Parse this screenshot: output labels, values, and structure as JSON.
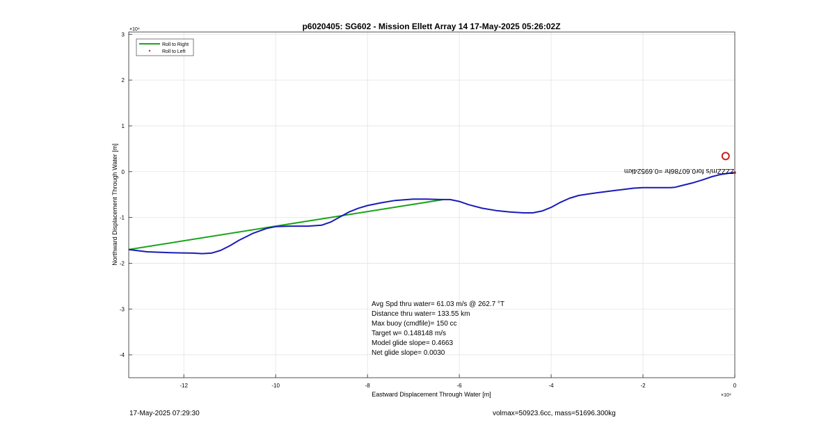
{
  "chart_data": {
    "type": "line",
    "title": "p6020405: SG602 - Mission Ellett Array 14 17-May-2025 05:26:02Z",
    "xlabel": "Eastward Displacement Through Water [m]",
    "ylabel": "Northward Displacement Through Water [m]",
    "x_exponent_label": "×10⁴",
    "y_exponent_label": "×10⁴",
    "xlim": [
      -13.2,
      0
    ],
    "ylim": [
      -4.5,
      3.05
    ],
    "x_ticks": [
      -12,
      -10,
      -8,
      -6,
      -4,
      -2,
      0
    ],
    "y_ticks": [
      -4,
      -3,
      -2,
      -1,
      0,
      1,
      2,
      3
    ],
    "grid": true,
    "legend_position": "top-left",
    "series": [
      {
        "name": "Roll to Right",
        "color": "#1aa31a",
        "x": [
          -13.2,
          -6.35
        ],
        "y": [
          -1.7,
          -0.61
        ]
      },
      {
        "name": "Roll to Left",
        "color": "#e02020",
        "marker": "dot"
      },
      {
        "name": "",
        "color": "#1a1ab8",
        "x": [
          -13.2,
          -12.8,
          -12.3,
          -11.8,
          -11.6,
          -11.4,
          -11.2,
          -11.0,
          -10.8,
          -10.5,
          -10.2,
          -10.0,
          -9.7,
          -9.3,
          -9.0,
          -8.8,
          -8.6,
          -8.4,
          -8.2,
          -8.0,
          -7.7,
          -7.4,
          -7.0,
          -6.7,
          -6.4,
          -6.2,
          -6.0,
          -5.8,
          -5.5,
          -5.2,
          -4.9,
          -4.6,
          -4.4,
          -4.2,
          -4.0,
          -3.8,
          -3.6,
          -3.4,
          -3.2,
          -3.0,
          -2.6,
          -2.2,
          -2.0,
          -1.7,
          -1.4,
          -1.3,
          -1.1,
          -0.9,
          -0.7,
          -0.5,
          -0.3,
          -0.1,
          0.0
        ],
        "y": [
          -1.7,
          -1.75,
          -1.77,
          -1.78,
          -1.79,
          -1.78,
          -1.72,
          -1.62,
          -1.5,
          -1.35,
          -1.24,
          -1.2,
          -1.19,
          -1.19,
          -1.17,
          -1.1,
          -0.99,
          -0.88,
          -0.8,
          -0.74,
          -0.68,
          -0.63,
          -0.6,
          -0.6,
          -0.61,
          -0.61,
          -0.65,
          -0.72,
          -0.8,
          -0.85,
          -0.88,
          -0.9,
          -0.9,
          -0.86,
          -0.78,
          -0.67,
          -0.58,
          -0.52,
          -0.49,
          -0.46,
          -0.41,
          -0.36,
          -0.35,
          -0.35,
          -0.35,
          -0.34,
          -0.29,
          -0.24,
          -0.18,
          -0.11,
          -0.06,
          -0.03,
          -0.02
        ]
      }
    ],
    "markers": [
      {
        "name": "current position circle",
        "x": -0.2,
        "y": 0.34,
        "color": "#c81e1e"
      }
    ],
    "annotation_mirrored": "ZZZZm/s for0.60786hr =0.69524km",
    "stats_lines": [
      "Avg Spd thru water= 61.03 m/s @ 262.7 °T",
      "Distance thru water= 133.55 km",
      "Max buoy (cmdfile)= 150 cc",
      "Target w= 0.148148 m/s",
      "Model glide slope= 0.4663",
      "Net glide slope= 0.0030"
    ]
  },
  "footer": {
    "timestamp": "17-May-2025 07:29:30",
    "volume_mass": "volmax=50923.6cc, mass=51696.300kg"
  }
}
